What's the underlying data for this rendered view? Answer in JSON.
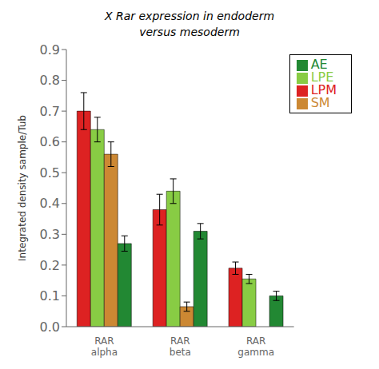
{
  "chart_data": {
    "type": "bar",
    "title": "X Rar expression in endoderm\nversus mesoderm",
    "ylabel": "Integrated density sample/Tub",
    "categories": [
      "RAR\nalpha",
      "RAR\nbeta",
      "RAR\ngamma"
    ],
    "series": [
      {
        "name": "LPM",
        "color": "#dd2222",
        "values": [
          0.7,
          0.38,
          0.19
        ],
        "errors": [
          0.06,
          0.05,
          0.02
        ]
      },
      {
        "name": "LPE",
        "color": "#88cc44",
        "values": [
          0.64,
          0.44,
          0.155
        ],
        "errors": [
          0.04,
          0.04,
          0.015
        ]
      },
      {
        "name": "SM",
        "color": "#cc8833",
        "values": [
          0.56,
          0.065,
          0.0
        ],
        "errors": [
          0.04,
          0.015,
          0.0
        ]
      },
      {
        "name": "AE",
        "color": "#228833",
        "values": [
          0.27,
          0.31,
          0.1
        ],
        "errors": [
          0.025,
          0.025,
          0.015
        ]
      }
    ],
    "ylim": [
      0,
      0.9
    ],
    "yticks": [
      {
        "value": 0,
        "label": "0.0"
      },
      0.1,
      0.2,
      0.3,
      0.4,
      0.5,
      0.6,
      0.7,
      0.8,
      0.9
    ],
    "grid": false,
    "legend": "upper right"
  }
}
